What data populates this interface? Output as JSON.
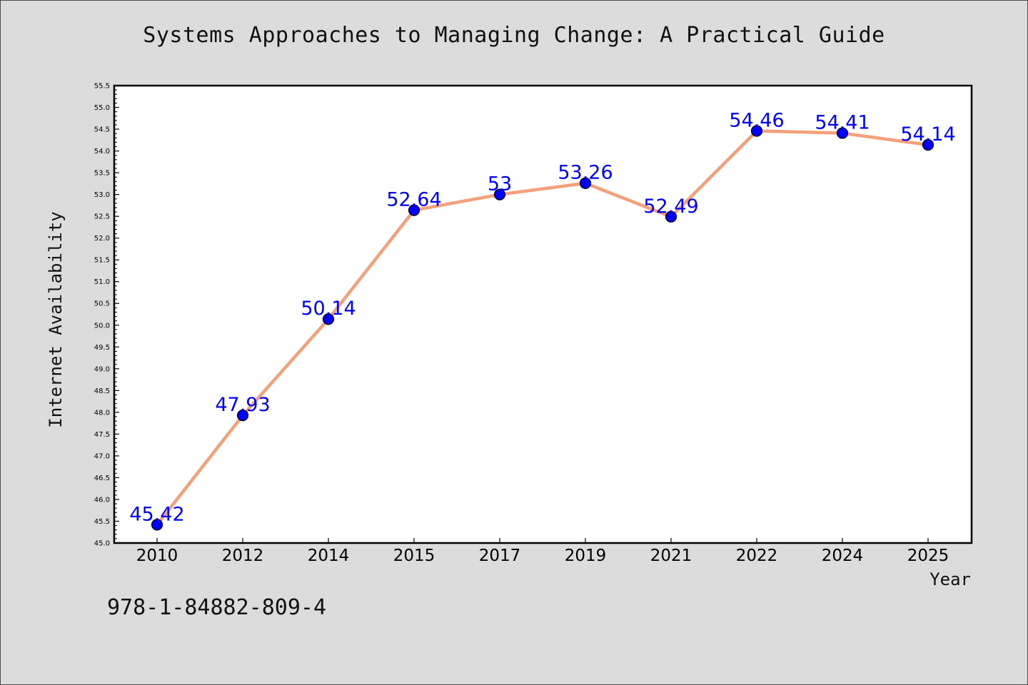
{
  "title": "Systems Approaches to Managing Change: A Practical Guide",
  "isbn": "978-1-84882-809-4",
  "chart_data": {
    "type": "line",
    "title": "Systems Approaches to Managing Change: A Practical Guide",
    "xlabel": "Year",
    "ylabel": "Internet Availability",
    "categories": [
      "2010",
      "2012",
      "2014",
      "2015",
      "2017",
      "2019",
      "2021",
      "2022",
      "2024",
      "2025"
    ],
    "series": [
      {
        "values": [
          45.42,
          47.93,
          50.14,
          52.64,
          53,
          53.26,
          52.49,
          54.46,
          54.41,
          54.14
        ],
        "labels": [
          "45.42",
          "47.93",
          "50.14",
          "52.64",
          "53",
          "53.26",
          "52.49",
          "54.46",
          "54.41",
          "54.14"
        ]
      }
    ],
    "ylim": [
      45.0,
      55.5
    ],
    "yticks": [
      "45.0",
      "45.5",
      "46.0",
      "46.5",
      "47.0",
      "47.5",
      "48.0",
      "48.5",
      "49.0",
      "49.5",
      "50.0",
      "50.5",
      "51.0",
      "51.5",
      "52.0",
      "52.5",
      "53.0",
      "53.5",
      "54.0",
      "54.5",
      "55.0",
      "55.5"
    ],
    "grid": false,
    "line_color": "#f4a07a",
    "marker_color": "#0000ff",
    "label_color": "#0000ff"
  }
}
